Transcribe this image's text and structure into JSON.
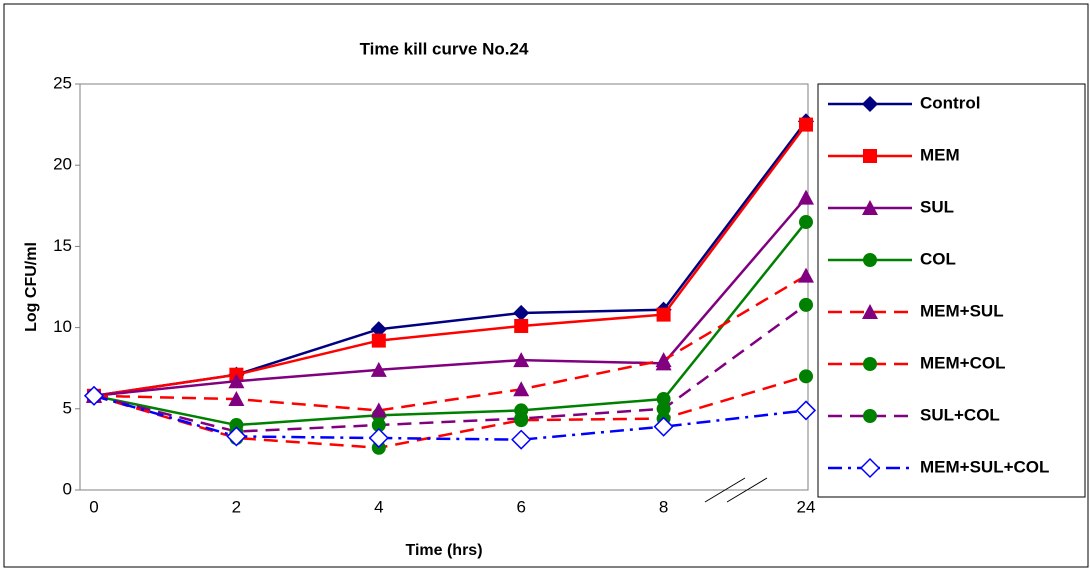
{
  "chart_data": {
    "type": "line",
    "title": "Time kill curve No.24",
    "x_label": "Time (hrs)",
    "y_label": "Log CFU/ml",
    "categories": [
      "0",
      "2",
      "4",
      "6",
      "8",
      "24"
    ],
    "ylim": [
      0,
      25
    ],
    "yticks": [
      0,
      5,
      10,
      15,
      20,
      25
    ],
    "grid": false,
    "series": [
      {
        "name": "Control",
        "color": "#000080",
        "marker_color": "#000080",
        "marker": "diamond",
        "dash": "solid",
        "values": [
          5.8,
          7.1,
          9.9,
          10.9,
          11.1,
          22.7
        ]
      },
      {
        "name": "MEM",
        "color": "#ff0000",
        "marker_color": "#ff0000",
        "marker": "square",
        "dash": "solid",
        "values": [
          5.8,
          7.1,
          9.2,
          10.1,
          10.8,
          22.5
        ]
      },
      {
        "name": "SUL",
        "color": "#800080",
        "marker_color": "#800080",
        "marker": "triangle",
        "dash": "solid",
        "values": [
          5.8,
          6.7,
          7.4,
          8.0,
          7.8,
          18.0
        ]
      },
      {
        "name": "COL",
        "color": "#008000",
        "marker_color": "#008000",
        "marker": "circle",
        "dash": "solid",
        "values": [
          5.8,
          4.0,
          4.6,
          4.9,
          5.6,
          16.5
        ]
      },
      {
        "name": "MEM+SUL",
        "color": "#ff0000",
        "marker_color": "#800080",
        "marker": "triangle",
        "dash": "dash",
        "values": [
          5.8,
          5.6,
          4.9,
          6.2,
          8.0,
          13.2
        ]
      },
      {
        "name": "MEM+COL",
        "color": "#ff0000",
        "marker_color": "#008000",
        "marker": "circle",
        "dash": "dash",
        "values": [
          5.8,
          3.2,
          2.6,
          4.3,
          4.4,
          7.0
        ]
      },
      {
        "name": "SUL+COL",
        "color": "#800080",
        "marker_color": "#008000",
        "marker": "circle",
        "dash": "dash",
        "values": [
          5.8,
          3.6,
          4.0,
          4.4,
          5.0,
          11.4
        ]
      },
      {
        "name": "MEM+SUL+COL",
        "color": "#0000ff",
        "marker_color": "#0000ff",
        "marker": "open-diamond",
        "dash": "dashdot",
        "values": [
          5.8,
          3.3,
          3.2,
          3.1,
          3.9,
          4.9
        ]
      }
    ]
  }
}
